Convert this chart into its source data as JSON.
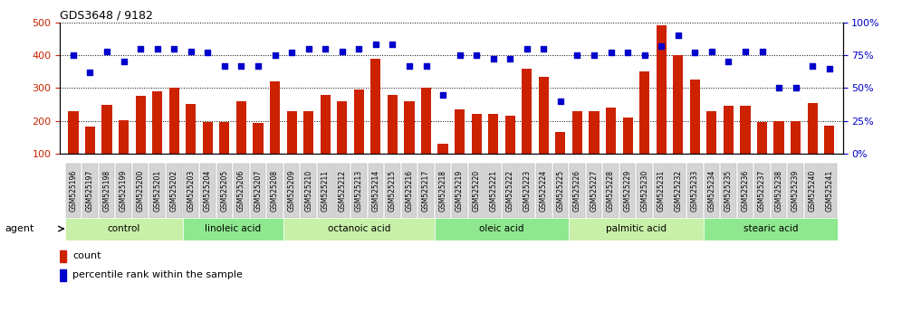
{
  "title": "GDS3648 / 9182",
  "samples": [
    "GSM525196",
    "GSM525197",
    "GSM525198",
    "GSM525199",
    "GSM525200",
    "GSM525201",
    "GSM525202",
    "GSM525203",
    "GSM525204",
    "GSM525205",
    "GSM525206",
    "GSM525207",
    "GSM525208",
    "GSM525209",
    "GSM525210",
    "GSM525211",
    "GSM525212",
    "GSM525213",
    "GSM525214",
    "GSM525215",
    "GSM525216",
    "GSM525217",
    "GSM525218",
    "GSM525219",
    "GSM525220",
    "GSM525221",
    "GSM525222",
    "GSM525223",
    "GSM525224",
    "GSM525225",
    "GSM525226",
    "GSM525227",
    "GSM525228",
    "GSM525229",
    "GSM525230",
    "GSM525231",
    "GSM525232",
    "GSM525233",
    "GSM525234",
    "GSM525235",
    "GSM525236",
    "GSM525237",
    "GSM525238",
    "GSM525239",
    "GSM525240",
    "GSM525241"
  ],
  "bar_values": [
    230,
    182,
    248,
    202,
    275,
    290,
    300,
    250,
    195,
    195,
    260,
    193,
    320,
    230,
    230,
    280,
    260,
    295,
    390,
    280,
    260,
    300,
    130,
    235,
    220,
    220,
    215,
    358,
    335,
    165,
    230,
    230,
    240,
    210,
    350,
    490,
    400,
    325,
    230,
    245,
    245,
    195,
    200,
    200,
    255,
    185
  ],
  "dot_values": [
    75,
    62,
    78,
    70,
    80,
    80,
    80,
    78,
    77,
    67,
    67,
    67,
    75,
    77,
    80,
    80,
    78,
    80,
    83,
    83,
    67,
    67,
    45,
    75,
    75,
    72,
    72,
    80,
    80,
    40,
    75,
    75,
    77,
    77,
    75,
    82,
    90,
    77,
    78,
    70,
    78,
    78,
    50,
    50,
    67,
    65
  ],
  "groups": [
    {
      "label": "control",
      "start": 0,
      "end": 6
    },
    {
      "label": "linoleic acid",
      "start": 7,
      "end": 12
    },
    {
      "label": "octanoic acid",
      "start": 13,
      "end": 21
    },
    {
      "label": "oleic acid",
      "start": 22,
      "end": 29
    },
    {
      "label": "palmitic acid",
      "start": 30,
      "end": 37
    },
    {
      "label": "stearic acid",
      "start": 38,
      "end": 45
    }
  ],
  "bar_color": "#cc2200",
  "dot_color": "#0000cc",
  "ylim_left": [
    100,
    500
  ],
  "ylim_right": [
    0,
    100
  ],
  "yticks_left": [
    100,
    200,
    300,
    400,
    500
  ],
  "yticks_right": [
    0,
    25,
    50,
    75,
    100
  ],
  "ylabel_right_labels": [
    "0%",
    "25%",
    "50%",
    "75%",
    "100%"
  ],
  "agent_label": "agent",
  "legend_count": "count",
  "legend_pct": "percentile rank within the sample",
  "background_color": "#ffffff",
  "tick_label_bgcolor": "#d4d4d4",
  "group_color_light": "#c8f5c8",
  "group_color_dark": "#90d890"
}
